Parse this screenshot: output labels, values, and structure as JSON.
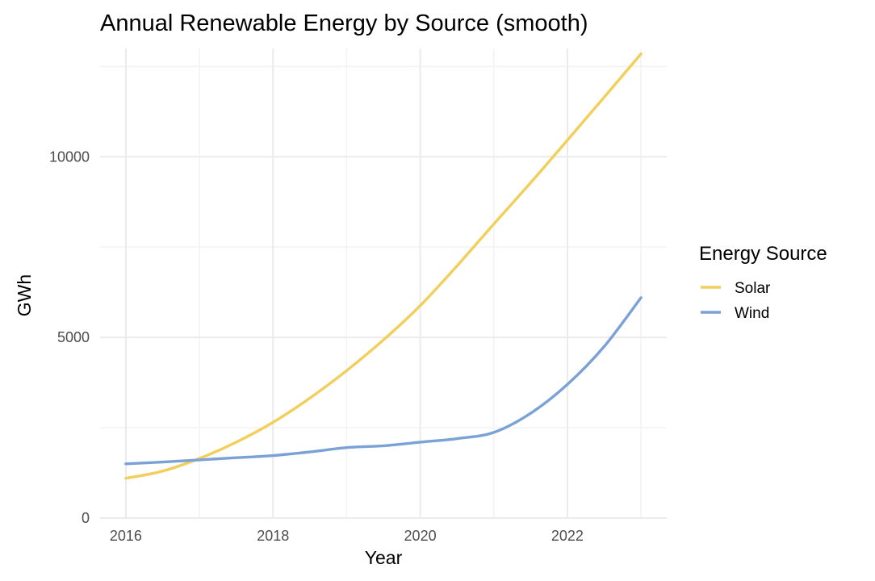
{
  "chart_data": {
    "type": "line",
    "title": "Annual Renewable Energy by Source (smooth)",
    "xlabel": "Year",
    "ylabel": "GWh",
    "xlim": [
      2015.65,
      2023.35
    ],
    "ylim": [
      0,
      13000
    ],
    "x_ticks": [
      2016,
      2018,
      2020,
      2022
    ],
    "x_tick_labels": [
      "2016",
      "2018",
      "2020",
      "2022"
    ],
    "y_ticks": [
      0,
      5000,
      10000
    ],
    "y_tick_labels": [
      "0",
      "5000",
      "10000"
    ],
    "grid": true,
    "legend": {
      "title": "Energy Source",
      "position": "right"
    },
    "x": [
      2016,
      2016.5,
      2017,
      2017.5,
      2018,
      2018.5,
      2019,
      2019.5,
      2020,
      2020.5,
      2021,
      2021.5,
      2022,
      2022.5,
      2023
    ],
    "series": [
      {
        "name": "Solar",
        "color": "#f2cf5b",
        "values": [
          1100,
          1300,
          1650,
          2100,
          2650,
          3320,
          4080,
          4930,
          5880,
          6980,
          8140,
          9280,
          10460,
          11650,
          12850
        ]
      },
      {
        "name": "Wind",
        "color": "#7aa2d6",
        "values": [
          1500,
          1550,
          1610,
          1670,
          1730,
          1830,
          1950,
          2000,
          2100,
          2200,
          2370,
          2900,
          3700,
          4750,
          6100
        ]
      }
    ]
  }
}
